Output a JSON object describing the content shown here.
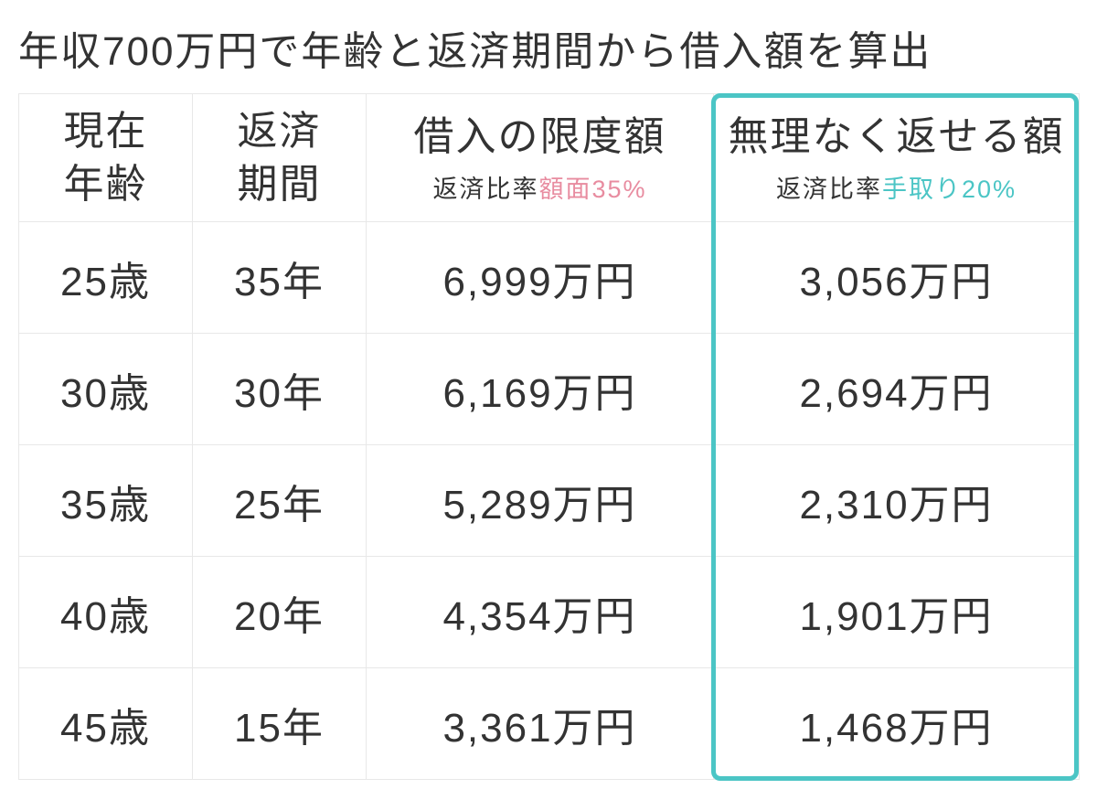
{
  "title": "年収700万円で年齢と返済期間から借入額を算出",
  "columns": {
    "age": {
      "header_line1": "現在",
      "header_line2": "年齢"
    },
    "period": {
      "header_line1": "返済",
      "header_line2": "期間"
    },
    "limit": {
      "header_main": "借入の限度額",
      "header_sub_prefix": "返済比率",
      "header_sub_accent": "額面35%"
    },
    "comfortable": {
      "header_main": "無理なく返せる額",
      "header_sub_prefix": "返済比率",
      "header_sub_accent": "手取り20%"
    }
  },
  "rows": [
    {
      "age": "25歳",
      "period": "35年",
      "limit": "6,999万円",
      "comfortable": "3,056万円"
    },
    {
      "age": "30歳",
      "period": "30年",
      "limit": "6,169万円",
      "comfortable": "2,694万円"
    },
    {
      "age": "35歳",
      "period": "25年",
      "limit": "5,289万円",
      "comfortable": "2,310万円"
    },
    {
      "age": "40歳",
      "period": "20年",
      "limit": "4,354万円",
      "comfortable": "1,901万円"
    },
    {
      "age": "45歳",
      "period": "15年",
      "limit": "3,361万円",
      "comfortable": "1,468万円"
    }
  ],
  "colors": {
    "accent_pink": "#e88ca0",
    "accent_teal": "#4bc5c5",
    "border": "#e8e8e8",
    "text": "#333333",
    "background": "#ffffff"
  },
  "highlight_column_index": 3
}
